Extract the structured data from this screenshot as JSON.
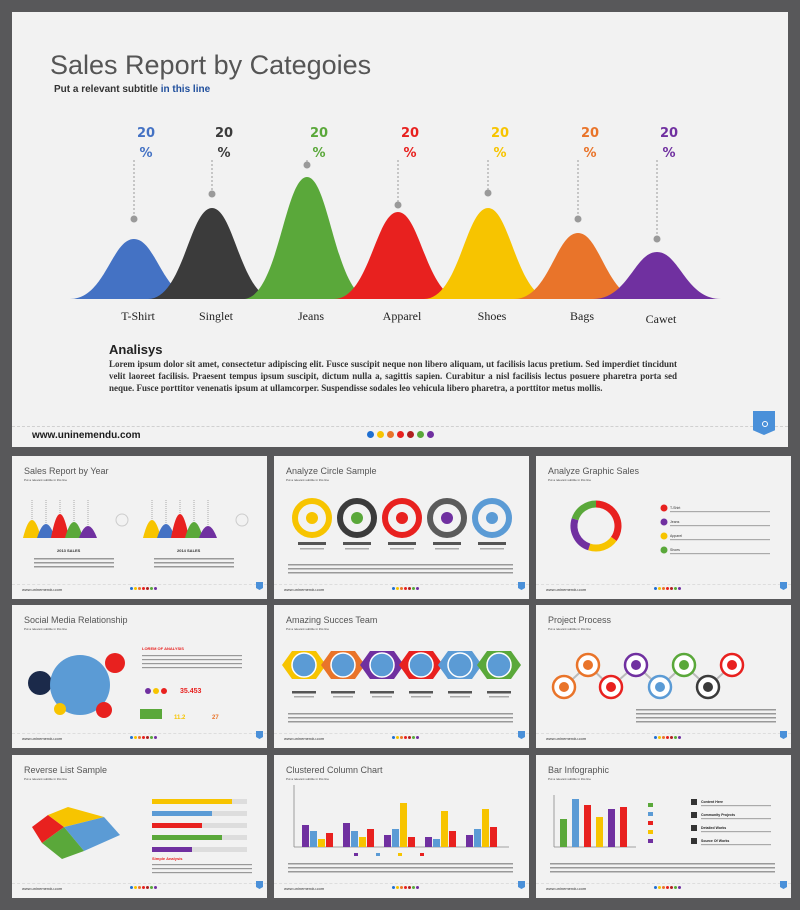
{
  "main_slide": {
    "title": "Sales Report by Categoies",
    "subtitle_plain": "Put a relevant subtitle",
    "subtitle_highlight": "in this line",
    "categories": [
      {
        "label": "T-Shirt",
        "percent_num": "20",
        "percent_sign": "%",
        "color": "#4472c4"
      },
      {
        "label": "Singlet",
        "percent_num": "20",
        "percent_sign": "%",
        "color": "#3b3b3b"
      },
      {
        "label": "Jeans",
        "percent_num": "20",
        "percent_sign": "%",
        "color": "#5aa83a"
      },
      {
        "label": "Apparel",
        "percent_num": "20",
        "percent_sign": "%",
        "color": "#e8211f"
      },
      {
        "label": "Shoes",
        "percent_num": "20",
        "percent_sign": "%",
        "color": "#f7c400"
      },
      {
        "label": "Bags",
        "percent_num": "20",
        "percent_sign": "%",
        "color": "#e9742a"
      },
      {
        "label": "Cawet",
        "percent_num": "20",
        "percent_sign": "%",
        "color": "#7030a0"
      }
    ],
    "analysis_title": "Analisys",
    "analysis_body": "Lorem ipsum dolor sit amet, consectetur adipiscing elit. Fusce suscipit neque non libero aliquam, ut facilisis lacus pretium. Sed imperdiet tincidunt velit laoreet facilisis. Praesent tempus ipsum suscipit, dictum nulla a, sagittis sapien. Curabitur a nisl facilisis lectus posuere pharetra porta sed neque. Fusce porttitor venenatis ipsum at ullamcorper. Suspendisse sodales leo vehicula libero pharetra, a porttitor metus mollis.",
    "website": "www.uninemendu.com",
    "footer_dot_colors": [
      "#1f6fd1",
      "#f7c400",
      "#e9742a",
      "#e8211f",
      "#b02020",
      "#5aa83a",
      "#7030a0"
    ]
  },
  "thumbnails": [
    {
      "title": "Sales Report by Year",
      "subtitle": "Put a relevant subtitle in this line",
      "site": "www.uninemendu.com",
      "labels": [
        "2013 SALES",
        "2014 SALES"
      ]
    },
    {
      "title": "Analyze Circle Sample",
      "subtitle": "Put a relevant subtitle in this line",
      "site": "www.uninemendu.com"
    },
    {
      "title": "Analyze Graphic Sales",
      "subtitle": "Put a relevant subtitle in this line",
      "site": "www.uninemendu.com",
      "legend": [
        "T-Shirt",
        "Jeans",
        "Apparel",
        "Shoes"
      ]
    },
    {
      "title": "Social Media Relationship",
      "subtitle": "Put a relevant subtitle in this line",
      "site": "www.uninemendu.com",
      "heading": "LOREM OF ANALYSIS",
      "stats": [
        "35.453",
        "11.2",
        "27"
      ]
    },
    {
      "title": "Amazing Succes Team",
      "subtitle": "Put a relevant subtitle in this line",
      "site": "www.uninemendu.com"
    },
    {
      "title": "Project Process",
      "subtitle": "Put a relevant subtitle in this line",
      "site": "www.uninemendu.com"
    },
    {
      "title": "Reverse List Sample",
      "subtitle": "Put a relevant subtitle in this line",
      "site": "www.uninemendu.com",
      "heading": "Simple Analysis"
    },
    {
      "title": "Clustered Column Chart",
      "subtitle": "Put a relevant subtitle in this line",
      "site": "www.uninemendu.com"
    },
    {
      "title": "Bar Infographic",
      "subtitle": "Put a relevant subtitle in this line",
      "site": "www.uninemendu.com",
      "list": [
        "Content Here",
        "Community Projects",
        "Detailed Works",
        "Source Of Works"
      ]
    }
  ],
  "colors": {
    "blue": "#4472c4",
    "dark": "#3b3b3b",
    "green": "#5aa83a",
    "red": "#e8211f",
    "yellow": "#f7c400",
    "orange": "#e9742a",
    "purple": "#7030a0",
    "lightblue": "#5b9bd5",
    "badge": "#4a90d9"
  }
}
